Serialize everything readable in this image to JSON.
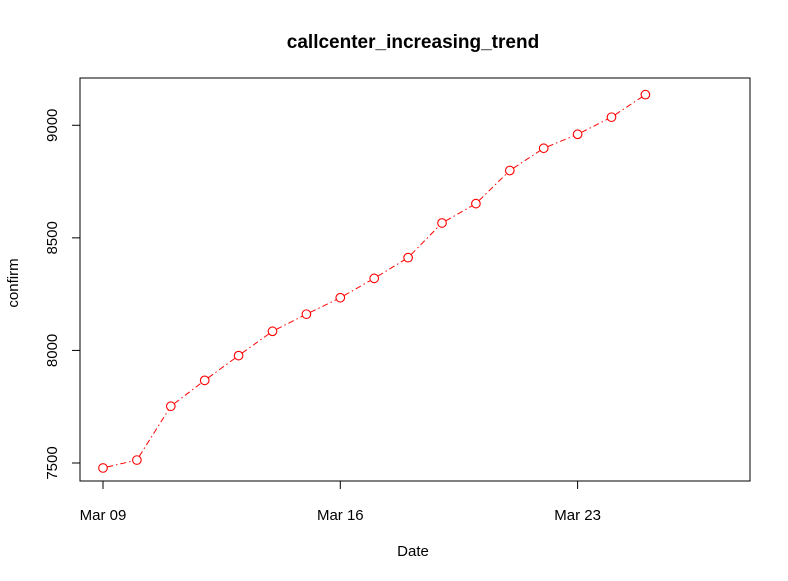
{
  "chart_data": {
    "type": "line",
    "title": "callcenter_increasing_trend",
    "xlabel": "Date",
    "ylabel": "confirm",
    "x": [
      "Mar 09",
      "Mar 10",
      "Mar 11",
      "Mar 12",
      "Mar 13",
      "Mar 14",
      "Mar 15",
      "Mar 16",
      "Mar 17",
      "Mar 18",
      "Mar 19",
      "Mar 20",
      "Mar 21",
      "Mar 22",
      "Mar 23",
      "Mar 24",
      "Mar 25"
    ],
    "x_ticks": [
      "Mar 09",
      "Mar 16",
      "Mar 23"
    ],
    "y_ticks": [
      7500,
      8000,
      8500,
      9000
    ],
    "ylim": [
      7420,
      9210
    ],
    "series": [
      {
        "values": [
          7478,
          7513,
          7752,
          7867,
          7977,
          8085,
          8161,
          8234,
          8320,
          8412,
          8566,
          8652,
          8799,
          8898,
          8960,
          9036,
          9136
        ],
        "color": "#ff0000",
        "line_style": "dash-dot",
        "marker": "open-circle"
      }
    ],
    "grid": false,
    "legend": "none"
  }
}
